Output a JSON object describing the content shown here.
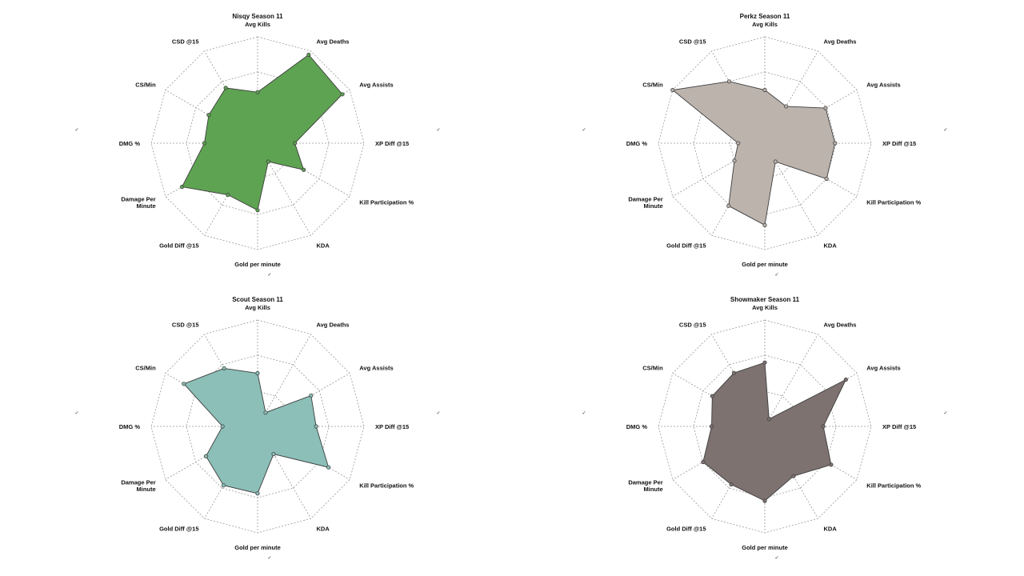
{
  "chart_data": [
    {
      "type": "radar",
      "title": "Nisqy Season 11",
      "axes": [
        "Avg Kills",
        "Avg Deaths",
        "Avg Assists",
        "XP Diff @15",
        "Kill Participation %",
        "KDA",
        "Gold per minute",
        "Gold Diff @15",
        "Damage Per Minute",
        "DMG %",
        "CS/Min",
        "CSD @15"
      ],
      "rlim": [
        0,
        1
      ],
      "grid": true,
      "values": [
        0.48,
        0.96,
        0.92,
        0.35,
        0.5,
        0.2,
        0.63,
        0.56,
        0.82,
        0.5,
        0.53,
        0.6
      ],
      "color": "#5ea352"
    },
    {
      "type": "radar",
      "title": "Perkz Season 11",
      "axes": [
        "Avg Kills",
        "Avg Deaths",
        "Avg Assists",
        "XP Diff @15",
        "Kill Participation %",
        "KDA",
        "Gold per minute",
        "Gold Diff @15",
        "Damage Per Minute",
        "DMG %",
        "CS/Min",
        "CSD @15"
      ],
      "rlim": [
        0,
        1
      ],
      "grid": true,
      "values": [
        0.5,
        0.4,
        0.66,
        0.66,
        0.67,
        0.2,
        0.77,
        0.68,
        0.33,
        0.25,
        1.0,
        0.67
      ],
      "color": "#bcb3ad"
    },
    {
      "type": "radar",
      "title": "Scout Season 11",
      "axes": [
        "Avg Kills",
        "Avg Deaths",
        "Avg Assists",
        "XP Diff @15",
        "Kill Participation %",
        "KDA",
        "Gold per minute",
        "Gold Diff @15",
        "Damage Per Minute",
        "DMG %",
        "CS/Min",
        "CSD @15"
      ],
      "rlim": [
        0,
        1
      ],
      "grid": true,
      "values": [
        0.5,
        0.15,
        0.58,
        0.55,
        0.77,
        0.3,
        0.63,
        0.64,
        0.56,
        0.33,
        0.8,
        0.63
      ],
      "color": "#8bbfb8"
    },
    {
      "type": "radar",
      "title": "Showmaker Season 11",
      "axes": [
        "Avg Kills",
        "Avg Deaths",
        "Avg Assists",
        "XP Diff @15",
        "Kill Participation %",
        "KDA",
        "Gold per minute",
        "Gold Diff @15",
        "Damage Per Minute",
        "DMG %",
        "CS/Min",
        "CSD @15"
      ],
      "rlim": [
        0,
        1
      ],
      "grid": true,
      "values": [
        0.6,
        0.08,
        0.88,
        0.55,
        0.72,
        0.54,
        0.7,
        0.63,
        0.67,
        0.5,
        0.57,
        0.58
      ],
      "color": "#7d7270"
    }
  ]
}
